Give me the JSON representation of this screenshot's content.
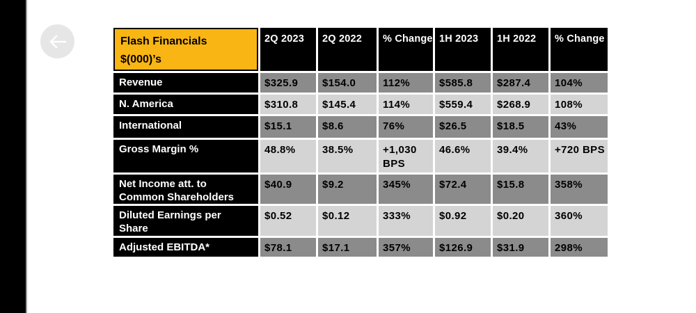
{
  "colors": {
    "accent_yellow": "#F9B513",
    "row_dark": "#8B8B8B",
    "row_light": "#D4D4D4",
    "header_bg": "#000000",
    "left_bar": "#000000",
    "page_bg": "#ffffff",
    "back_button_bg": "#e6e6e6"
  },
  "back_button": {
    "icon": "left-arrow-icon"
  },
  "table": {
    "header": {
      "title_line1": "Flash Financials",
      "title_line2": "$(000)’s",
      "columns": [
        "2Q 2023",
        "2Q 2022",
        "% Change",
        "1H 2023",
        "1H 2022",
        "% Change"
      ]
    },
    "rows": [
      {
        "label": "Revenue",
        "shade": "dark",
        "values": [
          "$325.9",
          "$154.0",
          "112%",
          "$585.8",
          "$287.4",
          "104%"
        ]
      },
      {
        "label": "N. America",
        "shade": "light",
        "values": [
          "$310.8",
          "$145.4",
          "114%",
          "$559.4",
          "$268.9",
          "108%"
        ]
      },
      {
        "label": "International",
        "shade": "dark",
        "values": [
          "$15.1",
          "$8.6",
          "76%",
          "$26.5",
          "$18.5",
          "43%"
        ]
      },
      {
        "label": "Gross Margin %",
        "shade": "light",
        "values": [
          "48.8%",
          "38.5%",
          "+1,030 BPS",
          "46.6%",
          "39.4%",
          "+720 BPS"
        ]
      },
      {
        "label": "Net Income att. to Common Shareholders",
        "shade": "dark",
        "values": [
          "$40.9",
          "$9.2",
          "345%",
          "$72.4",
          "$15.8",
          "358%"
        ]
      },
      {
        "label": "Diluted Earnings per Share",
        "shade": "light",
        "values": [
          "$0.52",
          "$0.12",
          "333%",
          "$0.92",
          "$0.20",
          "360%"
        ]
      },
      {
        "label": "Adjusted EBITDA*",
        "shade": "dark",
        "values": [
          "$78.1",
          "$17.1",
          "357%",
          "$126.9",
          "$31.9",
          "298%"
        ]
      }
    ]
  }
}
